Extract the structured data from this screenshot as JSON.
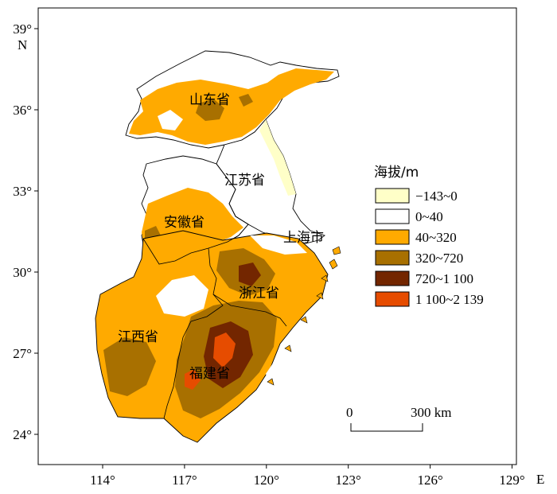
{
  "axes": {
    "y_ticks": [
      {
        "deg": 39,
        "label": "39°"
      },
      {
        "deg": 36,
        "label": "36°"
      },
      {
        "deg": 33,
        "label": "33°"
      },
      {
        "deg": 30,
        "label": "30°"
      },
      {
        "deg": 27,
        "label": "27°"
      },
      {
        "deg": 24,
        "label": "24°"
      }
    ],
    "x_ticks": [
      {
        "deg": 114,
        "label": "114°"
      },
      {
        "deg": 117,
        "label": "117°"
      },
      {
        "deg": 120,
        "label": "120°"
      },
      {
        "deg": 123,
        "label": "123°"
      },
      {
        "deg": 126,
        "label": "126°"
      },
      {
        "deg": 129,
        "label": "129°"
      }
    ],
    "north_label": "N",
    "east_label": "E"
  },
  "legend": {
    "title": "海拔/m",
    "items": [
      {
        "label": "−143~0",
        "color": "#ffffc8"
      },
      {
        "label": "0~40",
        "color": "#ffffff"
      },
      {
        "label": "40~320",
        "color": "#ffaa00"
      },
      {
        "label": "320~720",
        "color": "#a87000"
      },
      {
        "label": "720~1 100",
        "color": "#732600"
      },
      {
        "label": "1 100~2 139",
        "color": "#e64c00"
      }
    ]
  },
  "regions": [
    {
      "name": "山东省"
    },
    {
      "name": "江苏省"
    },
    {
      "name": "安徽省"
    },
    {
      "name": "上海市"
    },
    {
      "name": "浙江省"
    },
    {
      "name": "江西省"
    },
    {
      "name": "福建省"
    }
  ],
  "scale_bar": {
    "start": "0",
    "end": "300 km"
  }
}
